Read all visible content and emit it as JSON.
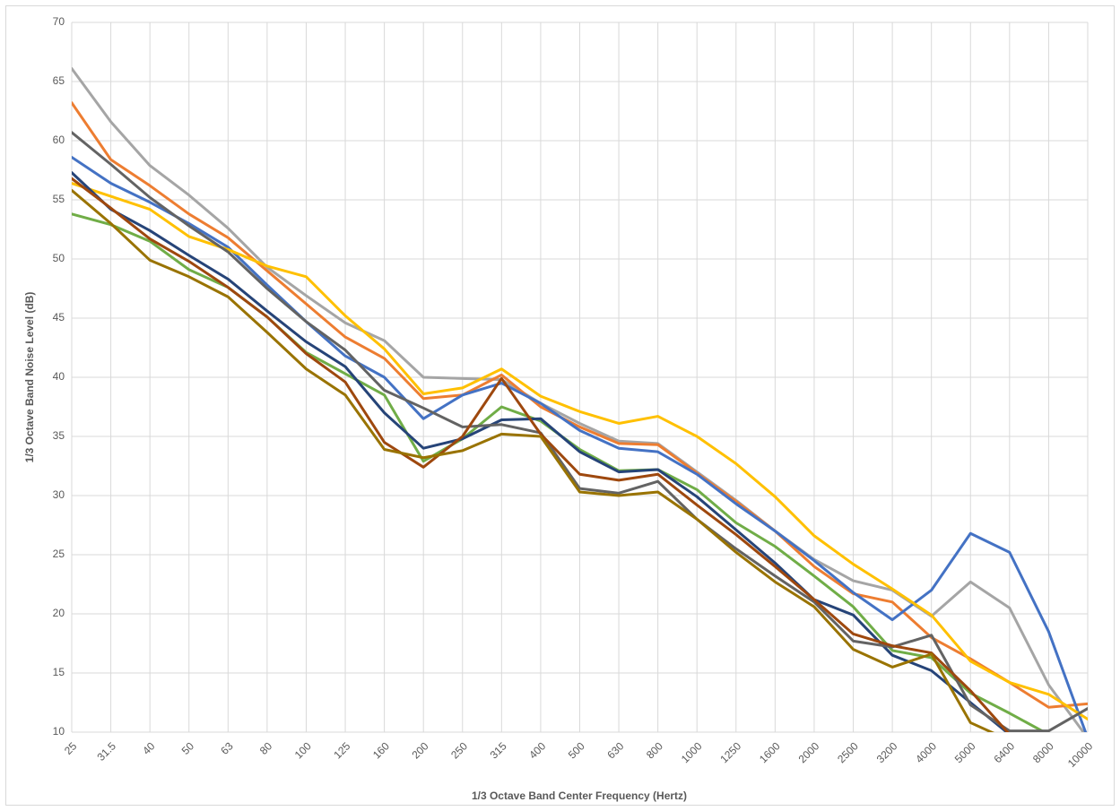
{
  "chart_data": {
    "type": "line",
    "x_label": "1/3 Octave Band Center Frequency (Hertz)",
    "y_label": "1/3 Octave Band Noise Level (dB)",
    "categories": [
      "25",
      "31.5",
      "40",
      "50",
      "63",
      "80",
      "100",
      "125",
      "160",
      "200",
      "250",
      "315",
      "400",
      "500",
      "630",
      "800",
      "1000",
      "1250",
      "1600",
      "2000",
      "2500",
      "3200",
      "4000",
      "5000",
      "6400",
      "8000",
      "10000"
    ],
    "ylim": [
      10,
      70
    ],
    "yticks": [
      10,
      15,
      20,
      25,
      30,
      35,
      40,
      45,
      50,
      55,
      60,
      65,
      70
    ],
    "grid": true,
    "series": [
      {
        "color": "#a5a5a5",
        "values": [
          66.1,
          61.6,
          57.9,
          55.4,
          52.6,
          49.3,
          46.9,
          44.6,
          43.1,
          40,
          39.9,
          39.8,
          37.8,
          36.1,
          34.6,
          34.4,
          32,
          29.6,
          27,
          24.6,
          22.8,
          22,
          19.8,
          22.7,
          20.5,
          14,
          9.5
        ]
      },
      {
        "color": "#ed7d31",
        "values": [
          63.2,
          58.4,
          56.2,
          53.8,
          51.8,
          49,
          46.2,
          43.4,
          41.6,
          38.2,
          38.5,
          40.2,
          37.5,
          35.8,
          34.4,
          34.3,
          31.9,
          29.5,
          27,
          24,
          21.7,
          21,
          18,
          16.2,
          14.2,
          12.1,
          12.4
        ]
      },
      {
        "color": "#4472c4",
        "values": [
          58.6,
          56.4,
          54.8,
          53,
          51,
          47.8,
          44.7,
          41.8,
          40,
          36.5,
          38.5,
          39.5,
          37.8,
          35.5,
          34,
          33.7,
          31.8,
          29.3,
          27,
          24.5,
          21.8,
          19.5,
          22,
          26.8,
          25.2,
          18.5,
          9.5
        ]
      },
      {
        "color": "#ffc000",
        "values": [
          56.4,
          55.3,
          54.2,
          51.9,
          50.8,
          49.4,
          48.5,
          45.2,
          42.4,
          38.6,
          39.1,
          40.7,
          38.4,
          37.1,
          36.1,
          36.7,
          35,
          32.7,
          29.9,
          26.6,
          24.2,
          22.1,
          19.9,
          16,
          14.2,
          13.2,
          11.1
        ]
      },
      {
        "color": "#70ad47",
        "values": [
          53.8,
          52.9,
          51.5,
          49.1,
          47.6,
          45.1,
          42.1,
          40.3,
          38.5,
          32.9,
          34.8,
          37.5,
          36.3,
          33.9,
          32.1,
          32.2,
          30.5,
          27.7,
          25.7,
          23.2,
          20.6,
          16.9,
          16.3,
          13.3,
          11.6,
          9.8,
          8
        ]
      },
      {
        "color": "#264478",
        "values": [
          57.3,
          54.2,
          52.4,
          50.3,
          48.3,
          45.6,
          43,
          40.9,
          37,
          34,
          34.8,
          36.4,
          36.5,
          33.7,
          32,
          32.2,
          29.9,
          27.1,
          24.3,
          21.2,
          19.9,
          16.5,
          15.2,
          12.5,
          9.8,
          9.5,
          9
        ]
      },
      {
        "color": "#636363",
        "values": [
          60.7,
          58,
          55.2,
          52.8,
          50.6,
          47.5,
          44.7,
          42.3,
          38.9,
          37.4,
          35.8,
          36,
          35.3,
          30.6,
          30.2,
          31.2,
          28,
          25.5,
          23.2,
          21,
          17.7,
          17.2,
          18.2,
          12.3,
          10.1,
          10.1,
          12
        ]
      },
      {
        "color": "#9e480e",
        "values": [
          56.8,
          54.3,
          51.7,
          49.8,
          47.6,
          45.1,
          42,
          39.6,
          34.5,
          32.4,
          35,
          39.9,
          35.2,
          31.8,
          31.3,
          31.8,
          29.2,
          26.7,
          24,
          21.2,
          18.3,
          17.3,
          16.7,
          13.5,
          9.8,
          9,
          8.5
        ]
      },
      {
        "color": "#997300",
        "values": [
          55.8,
          53,
          49.9,
          48.5,
          46.8,
          43.8,
          40.7,
          38.5,
          33.9,
          33.2,
          33.8,
          35.2,
          35,
          30.3,
          30,
          30.3,
          28,
          25.2,
          22.7,
          20.6,
          17,
          15.5,
          16.6,
          10.8,
          9.3,
          9,
          8.5
        ]
      }
    ]
  }
}
